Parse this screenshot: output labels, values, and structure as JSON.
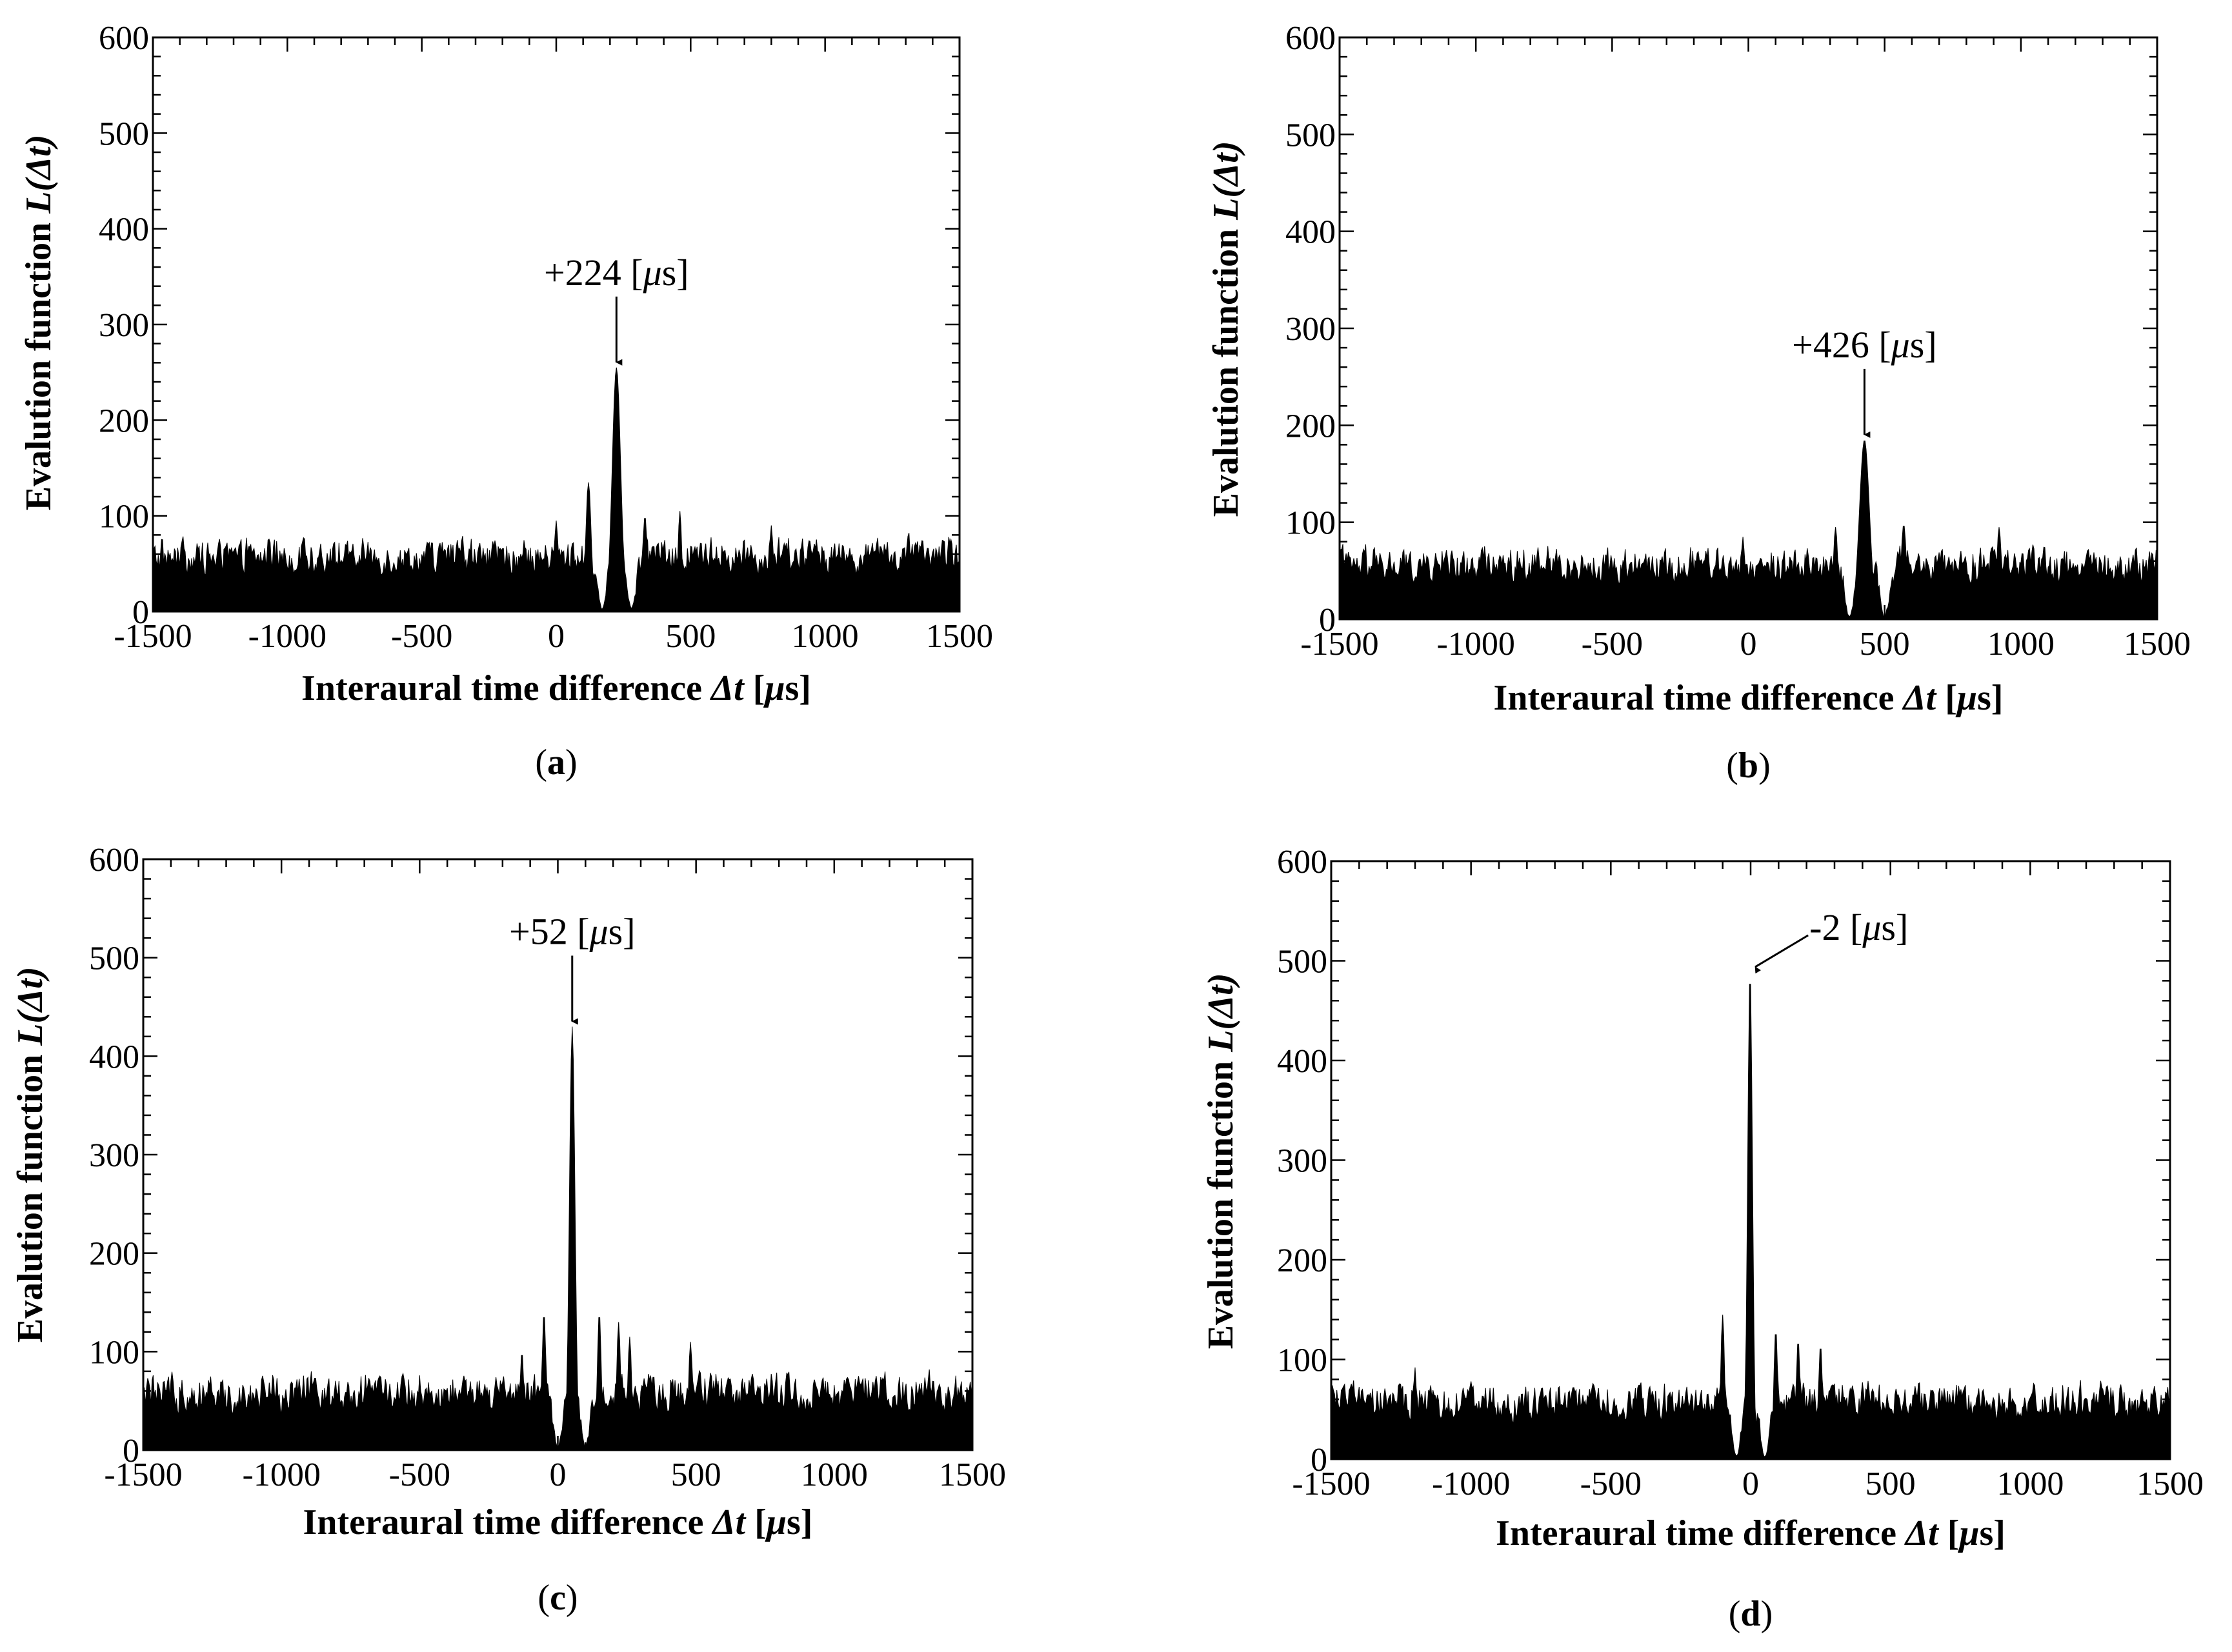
{
  "chart_data": [
    {
      "type": "area",
      "panel": "a",
      "caption_open": "(",
      "caption_letter": "a",
      "caption_close": ")",
      "xlabel_main": "Interaural time difference ",
      "xlabel_symbol": "Δt",
      "xlabel_unit_open": " [",
      "xlabel_unit_mu": "μ",
      "xlabel_unit_rest": "s]",
      "ylabel_main": "Evalution function ",
      "ylabel_symbol": "L(Δt)",
      "xlim": [
        -1500,
        1500
      ],
      "ylim": [
        0,
        600
      ],
      "xticks": [
        "-1500",
        "-1000",
        "-500",
        "0",
        "500",
        "1000",
        "1500"
      ],
      "yticks": [
        "0",
        "100",
        "200",
        "300",
        "400",
        "500",
        "600"
      ],
      "noise_level": 62,
      "noise_max": 78,
      "peaks": [
        {
          "x": 224,
          "y": 255,
          "width": 22
        },
        {
          "x": 120,
          "y": 135,
          "width": 14
        },
        {
          "x": 330,
          "y": 100,
          "width": 12
        },
        {
          "x": 460,
          "y": 105,
          "width": 10
        },
        {
          "x": 0,
          "y": 95,
          "width": 10
        },
        {
          "x": 800,
          "y": 90,
          "width": 10
        }
      ],
      "dips": [
        {
          "x": 170,
          "width": 22
        },
        {
          "x": 280,
          "width": 22
        }
      ],
      "annotation_prefix": "+224 [",
      "annotation_mu": "μ",
      "annotation_suffix": "s]",
      "annotation_x": 224,
      "annotation_y": 255
    },
    {
      "type": "area",
      "panel": "b",
      "caption_open": "(",
      "caption_letter": "b",
      "caption_close": ")",
      "xlabel_main": "Interaural time difference ",
      "xlabel_symbol": "Δt",
      "xlabel_unit_open": " [",
      "xlabel_unit_mu": "μ",
      "xlabel_unit_rest": "s]",
      "ylabel_main": "Evalution function ",
      "ylabel_symbol": "L(Δt)",
      "xlim": [
        -1500,
        1500
      ],
      "ylim": [
        0,
        600
      ],
      "xticks": [
        "-1500",
        "-1000",
        "-500",
        "0",
        "500",
        "1000",
        "1500"
      ],
      "yticks": [
        "0",
        "100",
        "200",
        "300",
        "400",
        "500",
        "600"
      ],
      "noise_level": 60,
      "noise_max": 76,
      "peaks": [
        {
          "x": 426,
          "y": 185,
          "width": 26
        },
        {
          "x": 320,
          "y": 95,
          "width": 12
        },
        {
          "x": 570,
          "y": 98,
          "width": 14
        },
        {
          "x": 920,
          "y": 95,
          "width": 12
        },
        {
          "x": -20,
          "y": 85,
          "width": 10
        }
      ],
      "dips": [
        {
          "x": 370,
          "width": 22
        },
        {
          "x": 500,
          "width": 24
        }
      ],
      "annotation_prefix": "+426 [",
      "annotation_mu": "μ",
      "annotation_suffix": "s]",
      "annotation_x": 426,
      "annotation_y": 185
    },
    {
      "type": "area",
      "panel": "c",
      "caption_open": "(",
      "caption_letter": "c",
      "caption_close": ")",
      "xlabel_main": "Interaural time difference ",
      "xlabel_symbol": "Δt",
      "xlabel_unit_open": " [",
      "xlabel_unit_mu": "μ",
      "xlabel_unit_rest": "s]",
      "ylabel_main": "Evalution function ",
      "ylabel_symbol": "L(Δt)",
      "xlim": [
        -1500,
        1500
      ],
      "ylim": [
        0,
        600
      ],
      "xticks": [
        "-1500",
        "-1000",
        "-500",
        "0",
        "500",
        "1000",
        "1500"
      ],
      "yticks": [
        "0",
        "100",
        "200",
        "300",
        "400",
        "500",
        "600"
      ],
      "noise_level": 60,
      "noise_max": 80,
      "peaks": [
        {
          "x": 52,
          "y": 430,
          "width": 14
        },
        {
          "x": -50,
          "y": 140,
          "width": 10
        },
        {
          "x": 150,
          "y": 140,
          "width": 10
        },
        {
          "x": 220,
          "y": 130,
          "width": 10
        },
        {
          "x": 260,
          "y": 115,
          "width": 10
        },
        {
          "x": 480,
          "y": 110,
          "width": 10
        },
        {
          "x": -130,
          "y": 100,
          "width": 10
        }
      ],
      "dips": [
        {
          "x": 0,
          "width": 22
        },
        {
          "x": 100,
          "width": 22
        }
      ],
      "annotation_prefix": "+52 [",
      "annotation_mu": "μ",
      "annotation_suffix": "s]",
      "annotation_x": 52,
      "annotation_y": 430
    },
    {
      "type": "area",
      "panel": "d",
      "caption_open": "(",
      "caption_letter": "d",
      "caption_close": ")",
      "xlabel_main": "Interaural time difference ",
      "xlabel_symbol": "Δt",
      "xlabel_unit_open": " [",
      "xlabel_unit_mu": "μ",
      "xlabel_unit_rest": "s]",
      "ylabel_main": "Evalution function ",
      "ylabel_symbol": "L(Δt)",
      "xlim": [
        -1500,
        1500
      ],
      "ylim": [
        0,
        600
      ],
      "xticks": [
        "-1500",
        "-1000",
        "-500",
        "0",
        "500",
        "1000",
        "1500"
      ],
      "yticks": [
        "0",
        "100",
        "200",
        "300",
        "400",
        "500",
        "600"
      ],
      "noise_level": 60,
      "noise_max": 78,
      "peaks": [
        {
          "x": -2,
          "y": 490,
          "width": 12
        },
        {
          "x": -100,
          "y": 145,
          "width": 10
        },
        {
          "x": 90,
          "y": 130,
          "width": 10
        },
        {
          "x": 170,
          "y": 120,
          "width": 10
        },
        {
          "x": 250,
          "y": 115,
          "width": 10
        },
        {
          "x": -1200,
          "y": 92,
          "width": 8
        }
      ],
      "dips": [
        {
          "x": -50,
          "width": 22
        },
        {
          "x": 50,
          "width": 22
        }
      ],
      "annotation_prefix": "-2 [",
      "annotation_mu": "μ",
      "annotation_suffix": "s]",
      "annotation_x": -2,
      "annotation_y": 490
    }
  ]
}
